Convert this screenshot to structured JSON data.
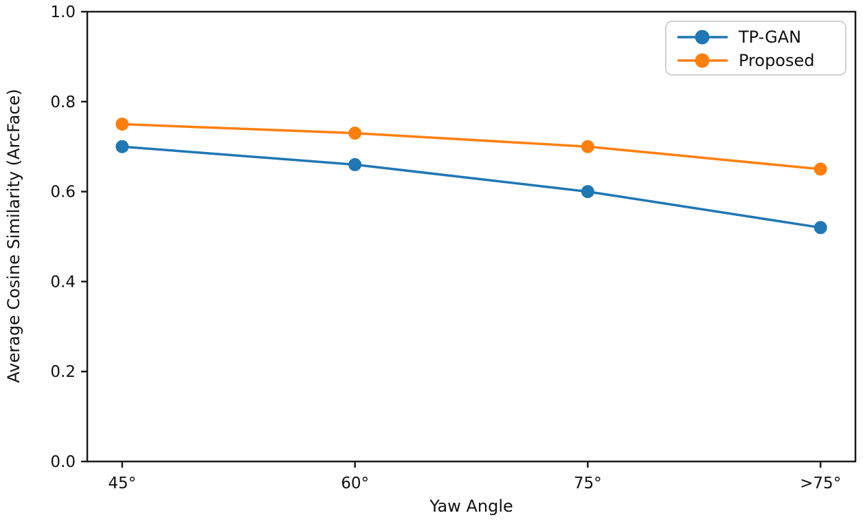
{
  "figure": {
    "background": "#ffffff",
    "axis_color": "#1a1a1a",
    "legend_border_color": "#cccccc"
  },
  "chart_data": {
    "type": "line",
    "title": "",
    "xlabel": "Yaw Angle",
    "ylabel": "Average Cosine Similarity (ArcFace)",
    "categories": [
      "45°",
      "60°",
      "75°",
      ">75°"
    ],
    "series": [
      {
        "name": "TP-GAN",
        "color": "#1f77b4",
        "marker": "circle",
        "values": [
          0.7,
          0.66,
          0.6,
          0.52
        ]
      },
      {
        "name": "Proposed",
        "color": "#ff7f0e",
        "marker": "circle",
        "values": [
          0.75,
          0.73,
          0.7,
          0.65
        ]
      }
    ],
    "ylim": [
      0.0,
      1.0
    ],
    "yticks": [
      0.0,
      0.2,
      0.4,
      0.6,
      0.8,
      1.0
    ],
    "ytick_labels": [
      "0.0",
      "0.2",
      "0.4",
      "0.6",
      "0.8",
      "1.0"
    ],
    "grid": false,
    "legend_position": "upper right",
    "legend_entries": [
      "TP-GAN",
      "Proposed"
    ]
  }
}
